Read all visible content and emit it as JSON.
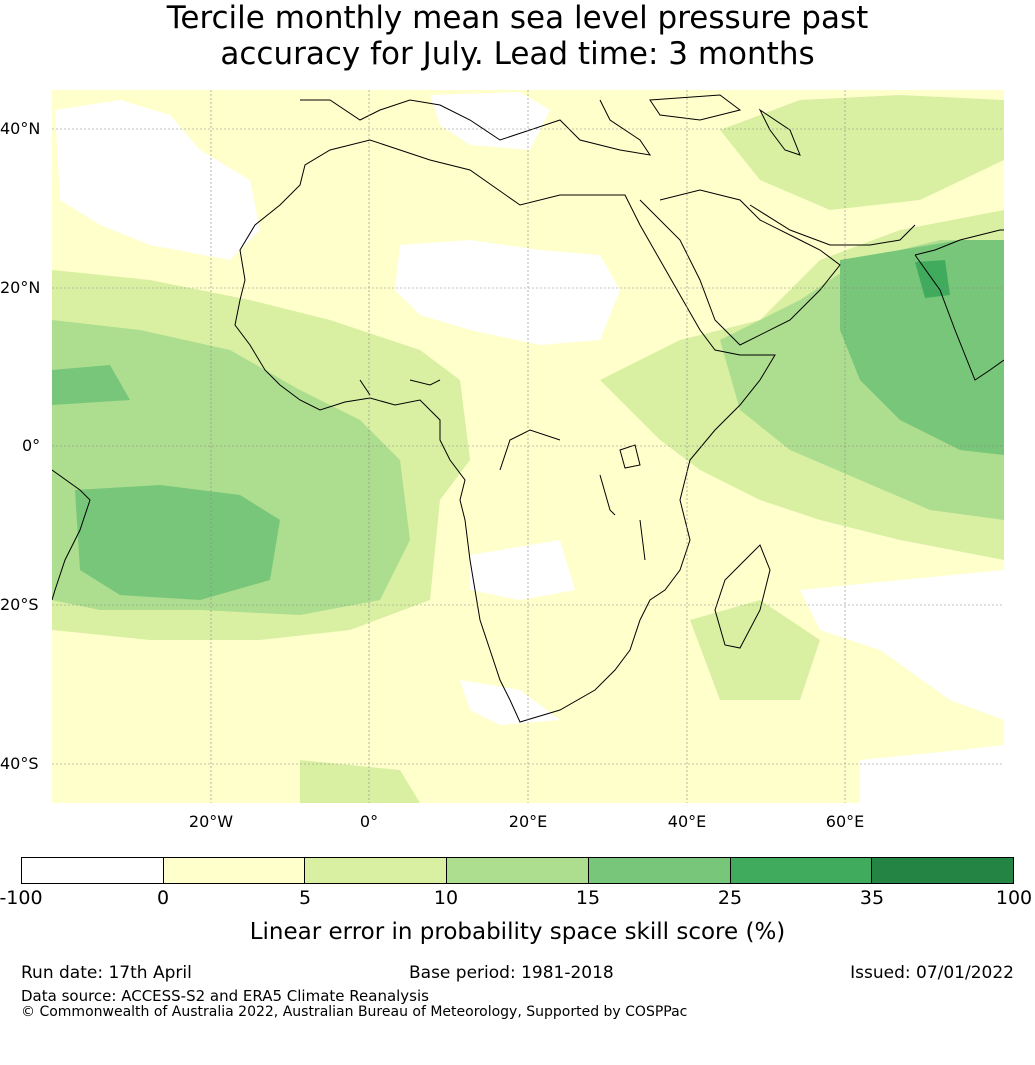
{
  "title": {
    "line1": "Tercile monthly mean sea level pressure past",
    "line2": "accuracy for July. Lead time: 3 months"
  },
  "map": {
    "lat_labels": [
      "40°N",
      "20°N",
      "0°",
      "20°S",
      "40°S"
    ],
    "lon_labels": [
      "20°W",
      "0°",
      "20°E",
      "40°E",
      "60°E"
    ],
    "extent": {
      "lon": [
        -40,
        80
      ],
      "lat": [
        -45,
        45
      ]
    },
    "palette": {
      "ocean_bg": "#ffffd2",
      "land": "#ffffd2",
      "skill_0_5": "#ffffcc",
      "skill_5_10": "#d9f0a3",
      "skill_10_15": "#addd8e",
      "skill_15_25": "#78c679",
      "skill_25_35": "#41ab5d",
      "skill_35_100": "#238443",
      "coastline": "#000000",
      "gridline": "#888888"
    }
  },
  "colorbar": {
    "ticks": [
      "-100",
      "0",
      "5",
      "10",
      "15",
      "25",
      "35",
      "100"
    ],
    "colors": [
      "#ffffff",
      "#ffffcc",
      "#d9f0a3",
      "#addd8e",
      "#78c679",
      "#41ab5d",
      "#238443"
    ],
    "label": "Linear error in probability space skill score (%)"
  },
  "footer": {
    "run_date": "Run date: 17th April",
    "base_period": "Base period: 1981-2018",
    "issued": "Issued: 07/01/2022",
    "data_source": "Data source: ACCESS-S2 and ERA5 Climate Reanalysis",
    "copyright": "© Commonwealth of Australia 2022, Australian Bureau of Meteorology, Supported by COSPPac"
  }
}
